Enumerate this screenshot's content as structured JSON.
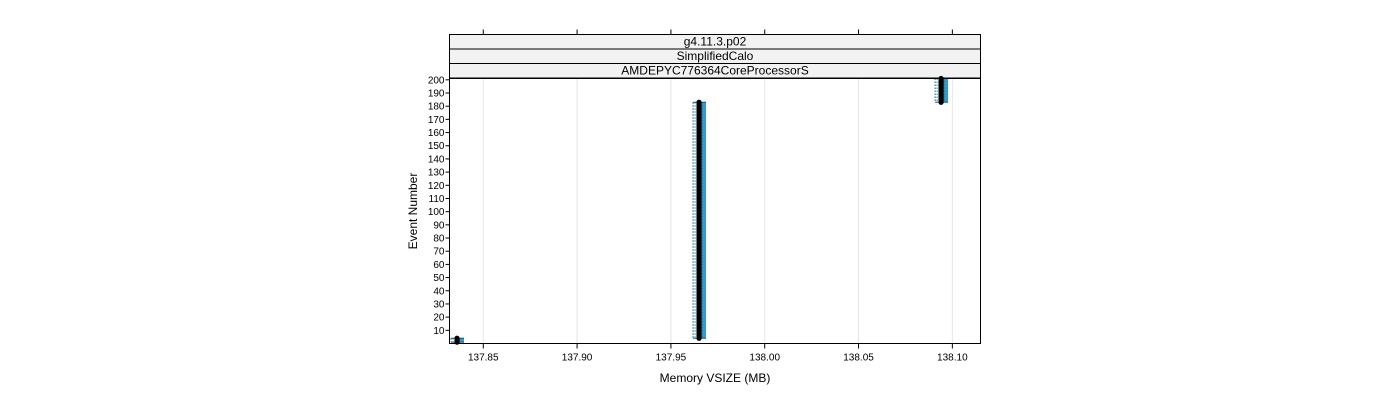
{
  "chart_data": {
    "type": "scatter",
    "strips": [
      "g4.11.3.p02",
      "SimplifiedCalo",
      "AMDEPYC776364CoreProcessorS"
    ],
    "xlabel": "Memory VSIZE (MB)",
    "ylabel": "Event Number",
    "xlim": [
      137.832,
      138.115
    ],
    "ylim": [
      0,
      201
    ],
    "x_ticks": [
      137.85,
      137.9,
      137.95,
      138.0,
      138.05,
      138.1
    ],
    "x_tick_labels": [
      "137.85",
      "137.90",
      "137.95",
      "138.00",
      "138.05",
      "138.10"
    ],
    "y_ticks": [
      10,
      20,
      30,
      40,
      50,
      60,
      70,
      80,
      90,
      100,
      110,
      120,
      130,
      140,
      150,
      160,
      170,
      180,
      190,
      200
    ],
    "y_tick_labels": [
      "10",
      "20",
      "30",
      "40",
      "50",
      "60",
      "70",
      "80",
      "90",
      "100",
      "110",
      "120",
      "130",
      "140",
      "150",
      "160",
      "170",
      "180",
      "190",
      "200"
    ],
    "grid": true,
    "clusters": [
      {
        "x": 137.836,
        "y_from": 1,
        "y_to": 4
      },
      {
        "x": 137.965,
        "y_from": 4,
        "y_to": 183
      },
      {
        "x": 138.094,
        "y_from": 183,
        "y_to": 201
      }
    ],
    "colors": {
      "point": "#000000",
      "band": "#1f8fbf",
      "band_dark": "#0b5a7a",
      "strip_fill": "#f2f2f2",
      "grid": "#e6e6e6"
    }
  }
}
